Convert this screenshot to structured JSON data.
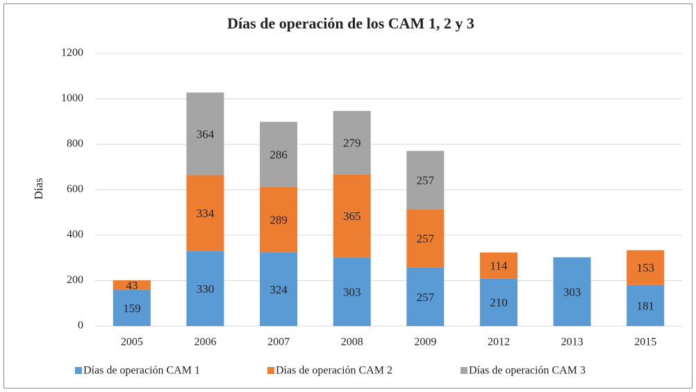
{
  "chart_data": {
    "type": "stacked_bar",
    "title": "Días de operación de los CAM 1, 2 y 3",
    "y_label": "Días",
    "categories": [
      "2005",
      "2006",
      "2007",
      "2008",
      "2009",
      "2012",
      "2013",
      "2015"
    ],
    "series": [
      {
        "name": "Días de operación CAM 1",
        "color": "#5b9bd5",
        "values": [
          159,
          330,
          324,
          303,
          257,
          210,
          303,
          181
        ]
      },
      {
        "name": "Días de operación CAM 2",
        "color": "#ed7d31",
        "values": [
          43,
          334,
          289,
          365,
          257,
          114,
          null,
          153
        ]
      },
      {
        "name": "Días de operación CAM 3",
        "color": "#a5a5a5",
        "values": [
          null,
          364,
          286,
          279,
          257,
          null,
          null,
          null
        ]
      }
    ],
    "ylim": [
      0,
      1200
    ],
    "yticks": [
      0,
      200,
      400,
      600,
      800,
      1000,
      1200
    ],
    "grid": true,
    "legend": "bottom"
  }
}
